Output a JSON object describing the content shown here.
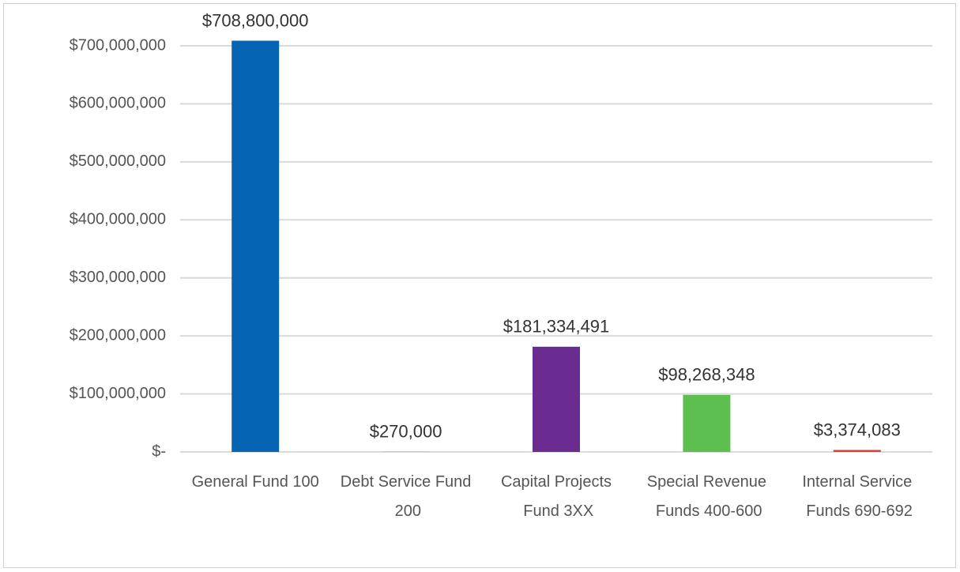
{
  "chart_data": {
    "type": "bar",
    "categories": [
      "General Fund 100",
      "Debt Service Fund 200",
      "Capital Projects Fund 3XX",
      "Special Revenue Funds 400-600",
      "Internal Service Funds 690-692"
    ],
    "values": [
      708800000,
      270000,
      181334491,
      98268348,
      3374083
    ],
    "value_labels": [
      "$708,800,000",
      "$270,000",
      "$181,334,491",
      "$98,268,348",
      "$3,374,083"
    ],
    "colors": [
      "#0563b4",
      "#ed7d31",
      "#6a2c91",
      "#5cbf4f",
      "#e03c3c"
    ],
    "ylim": [
      0,
      700000000
    ],
    "yticks": [
      {
        "value": 0,
        "label": "$-"
      },
      {
        "value": 100000000,
        "label": "$100,000,000"
      },
      {
        "value": 200000000,
        "label": "$200,000,000"
      },
      {
        "value": 300000000,
        "label": "$300,000,000"
      },
      {
        "value": 400000000,
        "label": "$400,000,000"
      },
      {
        "value": 500000000,
        "label": "$500,000,000"
      },
      {
        "value": 600000000,
        "label": "$600,000,000"
      },
      {
        "value": 700000000,
        "label": "$700,000,000"
      }
    ],
    "grid": true
  }
}
